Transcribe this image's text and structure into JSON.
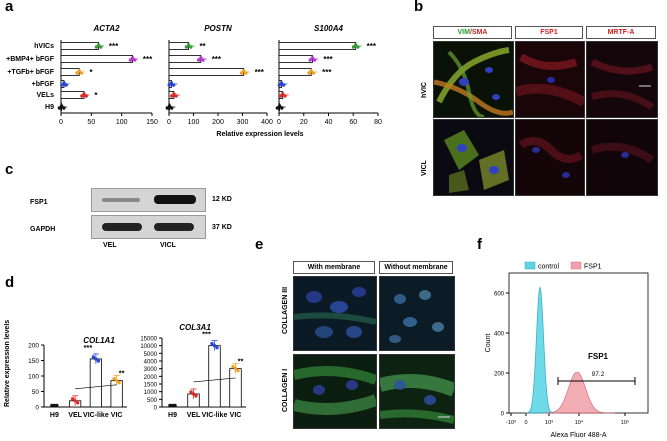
{
  "panels": {
    "a": {
      "label": "a",
      "row_labels": [
        "hVICs",
        "+BMP4+ bFGF",
        "+TGFb+ bFGF",
        "+bFGF",
        "VELs",
        "H9"
      ],
      "xlabel": "Relative expression levels"
    },
    "b": {
      "label": "b",
      "headers": {
        "vim": "VIM",
        "slash": "/",
        "sma": "SMA",
        "fsp1": "FSP1",
        "mrtfa": "MRTF-A"
      },
      "row_labels": [
        "hVIC",
        "VICL"
      ]
    },
    "c": {
      "label": "c",
      "bands": [
        "FSP1",
        "GAPDH"
      ],
      "sizes": [
        "12 KD",
        "37 KD"
      ],
      "lanes": [
        "VEL",
        "VICL"
      ]
    },
    "d": {
      "label": "d",
      "ylabel": "Relative expression levels"
    },
    "e": {
      "label": "e",
      "headers": [
        "With membrane",
        "Without membrane"
      ],
      "row_labels": [
        "COLLAGEN  III",
        "COLLAGEN  I"
      ]
    },
    "f": {
      "label": "f",
      "legend": [
        "control",
        "FSP1"
      ],
      "gate_label": "FSP1",
      "gate_value": "97.2",
      "ylabel": "Count",
      "xlabel": "Alexa Fluor 488-A",
      "yticks": [
        "0",
        "200",
        "400",
        "600"
      ],
      "xticks": [
        "-10³",
        "0",
        "10³",
        "10⁴",
        "10⁵"
      ]
    }
  },
  "colors": {
    "green": "#3a9a3a",
    "purple": "#b23bd0",
    "orange": "#f0a020",
    "blue": "#2846d8",
    "red": "#e02a2a",
    "black": "#111111",
    "cyan": "#5fd6e6",
    "pink": "#f0a0a8"
  },
  "chart_data": [
    {
      "type": "bar",
      "id": "ACTA2",
      "title": "ACTA2",
      "categories": [
        "hVICs",
        "+BMP4+ bFGF",
        "+TGFb+ bFGF",
        "+bFGF",
        "VELs",
        "H9"
      ],
      "values": [
        62,
        118,
        30,
        5,
        38,
        1
      ],
      "sig": [
        "***",
        "***",
        "*",
        "",
        "*",
        ""
      ],
      "xlim": [
        0,
        150
      ],
      "xticks": [
        "0",
        "50",
        "100",
        "150"
      ],
      "colors": [
        "#3a9a3a",
        "#b23bd0",
        "#f0a020",
        "#2846d8",
        "#e02a2a",
        "#111111"
      ]
    },
    {
      "type": "bar",
      "id": "POSTN",
      "title": "POSTN",
      "categories": [
        "hVICs",
        "+BMP4+ bFGF",
        "+TGFb+ bFGF",
        "+bFGF",
        "VELs",
        "H9"
      ],
      "values": [
        80,
        130,
        305,
        10,
        20,
        2
      ],
      "sig": [
        "**",
        "***",
        "***",
        "",
        "",
        ""
      ],
      "xlim": [
        0,
        400
      ],
      "xticks": [
        "0",
        "100",
        "200",
        "300",
        "400"
      ],
      "colors": [
        "#3a9a3a",
        "#b23bd0",
        "#f0a020",
        "#2846d8",
        "#e02a2a",
        "#111111"
      ]
    },
    {
      "type": "bar",
      "id": "S100A4",
      "title": "S100A4",
      "categories": [
        "hVICs",
        "+BMP4+ bFGF",
        "+TGFb+ bFGF",
        "+bFGF",
        "VELs",
        "H9"
      ],
      "values": [
        62,
        27,
        26,
        2,
        3,
        0.5
      ],
      "sig": [
        "***",
        "***",
        "***",
        "",
        "",
        ""
      ],
      "xlim": [
        0,
        80
      ],
      "xticks": [
        "0",
        "20",
        "40",
        "60",
        "80"
      ],
      "colors": [
        "#3a9a3a",
        "#b23bd0",
        "#f0a020",
        "#2846d8",
        "#e02a2a",
        "#111111"
      ]
    },
    {
      "type": "bar",
      "id": "COL1A1",
      "title": "COL1A1",
      "categories": [
        "H9",
        "VEL",
        "VIC-like",
        "VIC"
      ],
      "values": [
        1,
        20,
        155,
        85
      ],
      "sig": [
        "",
        "",
        "***",
        "**"
      ],
      "ylim": [
        0,
        200
      ],
      "yticks": [
        "0",
        "50",
        "100",
        "150",
        "200"
      ],
      "colors": [
        "#111111",
        "#e02a2a",
        "#2846d8",
        "#f0a020"
      ]
    },
    {
      "type": "bar",
      "id": "COL3A1",
      "title": "COL3A1",
      "categories": [
        "H9",
        "VEL",
        "VIC-like",
        "VIC"
      ],
      "values": [
        2,
        850,
        10000,
        3000
      ],
      "sig": [
        "",
        "",
        "***",
        "**"
      ],
      "ylim": [
        0,
        15000
      ],
      "yticks": [
        "0",
        "500",
        "1000",
        "1500",
        "2000",
        "3000",
        "4000",
        "5000",
        "10000",
        "15000"
      ],
      "colors": [
        "#111111",
        "#e02a2a",
        "#2846d8",
        "#f0a020"
      ]
    }
  ]
}
